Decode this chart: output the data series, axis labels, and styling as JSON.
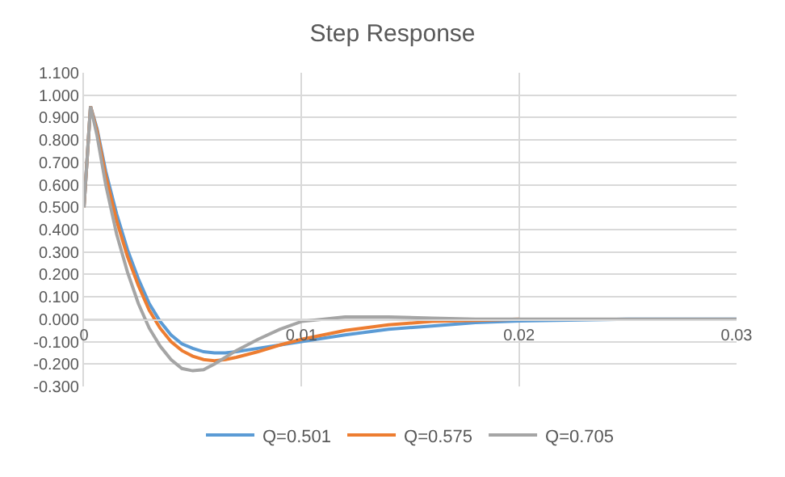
{
  "chart_data": {
    "type": "line",
    "title": "Step Response",
    "x": [
      0,
      0.0003,
      0.0006,
      0.001,
      0.0015,
      0.002,
      0.0025,
      0.003,
      0.0035,
      0.004,
      0.0045,
      0.005,
      0.0055,
      0.006,
      0.0065,
      0.007,
      0.008,
      0.009,
      0.01,
      0.012,
      0.014,
      0.016,
      0.018,
      0.02,
      0.025,
      0.03
    ],
    "series": [
      {
        "name": "Q=0.501",
        "color": "#5b9bd5",
        "values": [
          0.5,
          0.95,
          0.85,
          0.66,
          0.47,
          0.31,
          0.18,
          0.07,
          -0.01,
          -0.07,
          -0.11,
          -0.13,
          -0.145,
          -0.15,
          -0.15,
          -0.145,
          -0.13,
          -0.115,
          -0.1,
          -0.07,
          -0.045,
          -0.03,
          -0.015,
          -0.008,
          0,
          0
        ]
      },
      {
        "name": "Q=0.575",
        "color": "#ed7d31",
        "values": [
          0.5,
          0.95,
          0.84,
          0.64,
          0.44,
          0.28,
          0.15,
          0.04,
          -0.04,
          -0.1,
          -0.14,
          -0.165,
          -0.18,
          -0.185,
          -0.18,
          -0.17,
          -0.145,
          -0.115,
          -0.09,
          -0.05,
          -0.025,
          -0.01,
          -0.005,
          0,
          null,
          null
        ]
      },
      {
        "name": "Q=0.705",
        "color": "#a5a5a5",
        "values": [
          0.5,
          0.95,
          0.82,
          0.6,
          0.38,
          0.21,
          0.07,
          -0.04,
          -0.12,
          -0.18,
          -0.22,
          -0.23,
          -0.225,
          -0.2,
          -0.17,
          -0.14,
          -0.09,
          -0.045,
          -0.01,
          0.01,
          0.01,
          0.005,
          0,
          0,
          0,
          0
        ]
      }
    ],
    "xlim": [
      0,
      0.03
    ],
    "xticks": [
      0,
      0.01,
      0.02,
      0.03
    ],
    "ylim": [
      -0.3,
      1.1
    ],
    "yticks": [
      {
        "value": -0.3,
        "label": "-0.300"
      },
      {
        "value": -0.2,
        "label": "-0.200"
      },
      {
        "value": -0.1,
        "label": "-0.100"
      },
      {
        "value": 0,
        "label": "0.000"
      },
      {
        "value": 0.1,
        "label": "0.100"
      },
      {
        "value": 0.2,
        "label": "0.200"
      },
      {
        "value": 0.3,
        "label": "0.300"
      },
      {
        "value": 0.4,
        "label": "0.400"
      },
      {
        "value": 0.5,
        "label": "0.500"
      },
      {
        "value": 0.6,
        "label": "0.600"
      },
      {
        "value": 0.7,
        "label": "0.700"
      },
      {
        "value": 0.8,
        "label": "0.800"
      },
      {
        "value": 0.9,
        "label": "0.900"
      },
      {
        "value": 1,
        "label": "1.000"
      },
      {
        "value": 1.1,
        "label": "1.100"
      }
    ],
    "grid": true,
    "legend": "bottom",
    "marker": "none",
    "line_style": "solid"
  }
}
